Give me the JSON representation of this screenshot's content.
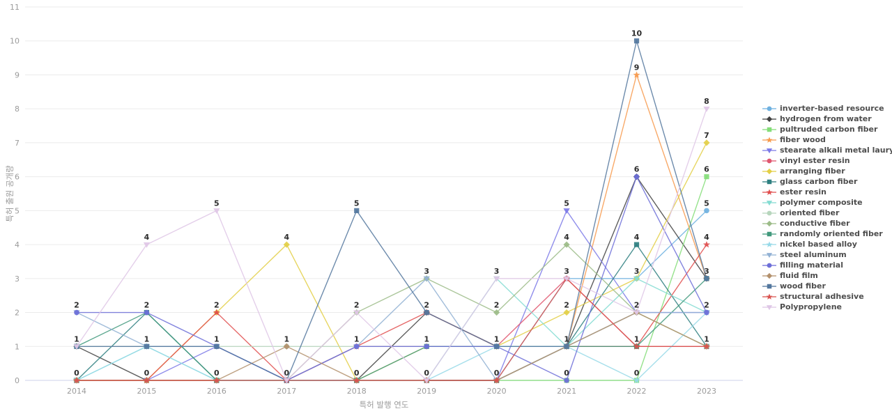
{
  "chart_data": {
    "type": "line",
    "title": "",
    "xlabel": "특허 발행 연도",
    "ylabel": "특허 출원 공개량",
    "x": [
      2014,
      2015,
      2016,
      2017,
      2018,
      2019,
      2020,
      2021,
      2022,
      2023
    ],
    "ylim": [
      0,
      11
    ],
    "yticks": [
      0,
      1,
      2,
      3,
      4,
      5,
      6,
      7,
      8,
      9,
      10,
      11
    ],
    "grid": true,
    "legend_position": "right",
    "point_labels": "one label per distinct value per year column",
    "colors": {
      "grid": "#ebebeb",
      "zero_line": "#ccd2ea",
      "tick_text": "#9b9b9b",
      "value_label_text": "#2d2d2d",
      "legend_text": "#4d4d4d",
      "background": "#ffffff"
    },
    "series": [
      {
        "name": "inverter-based resource",
        "color": "#6fb1e0",
        "marker": "circle",
        "values": [
          0,
          0,
          0,
          0,
          0,
          0,
          0,
          3,
          3,
          5
        ]
      },
      {
        "name": "hydrogen from water",
        "color": "#414141",
        "marker": "diamond",
        "values": [
          1,
          0,
          0,
          0,
          0,
          2,
          1,
          1,
          6,
          3
        ]
      },
      {
        "name": "pultruded carbon fiber",
        "color": "#84dd78",
        "marker": "square",
        "values": [
          0,
          0,
          0,
          0,
          0,
          0,
          0,
          0,
          0,
          6
        ]
      },
      {
        "name": "fiber wood",
        "color": "#f79a4d",
        "marker": "star",
        "values": [
          0,
          0,
          0,
          0,
          0,
          0,
          0,
          1,
          9,
          3
        ]
      },
      {
        "name": "stearate alkali metal laury...",
        "color": "#7d7ae8",
        "marker": "triangle-down",
        "values": [
          0,
          0,
          1,
          0,
          0,
          0,
          0,
          5,
          2,
          2
        ]
      },
      {
        "name": "vinyl ester resin",
        "color": "#e0566f",
        "marker": "circle",
        "values": [
          0,
          0,
          0,
          0,
          1,
          1,
          1,
          3,
          1,
          1
        ]
      },
      {
        "name": "arranging fiber",
        "color": "#e3cf46",
        "marker": "diamond",
        "values": [
          0,
          0,
          2,
          4,
          0,
          1,
          1,
          2,
          3,
          7
        ]
      },
      {
        "name": "glass carbon fiber",
        "color": "#2e7f80",
        "marker": "square",
        "values": [
          0,
          2,
          0,
          0,
          0,
          0,
          0,
          1,
          4,
          1
        ]
      },
      {
        "name": "ester resin",
        "color": "#e04d4d",
        "marker": "star",
        "values": [
          0,
          0,
          2,
          0,
          1,
          2,
          1,
          1,
          1,
          4
        ]
      },
      {
        "name": "polymer composite",
        "color": "#84dcd2",
        "marker": "triangle-down",
        "values": [
          0,
          1,
          0,
          0,
          0,
          0,
          3,
          1,
          3,
          2
        ]
      },
      {
        "name": "oriented fiber",
        "color": "#b7d6bd",
        "marker": "circle",
        "values": [
          1,
          1,
          1,
          1,
          1,
          1,
          1,
          1,
          2,
          1
        ]
      },
      {
        "name": "conductive fiber",
        "color": "#9cbc88",
        "marker": "diamond",
        "values": [
          0,
          0,
          0,
          0,
          2,
          3,
          2,
          4,
          2,
          1
        ]
      },
      {
        "name": "randomly oriented fiber",
        "color": "#41997c",
        "marker": "square",
        "values": [
          1,
          2,
          0,
          0,
          0,
          1,
          1,
          1,
          1,
          3
        ]
      },
      {
        "name": "nickel based alloy",
        "color": "#96d9e8",
        "marker": "star",
        "values": [
          0,
          1,
          0,
          0,
          0,
          0,
          1,
          1,
          0,
          2
        ]
      },
      {
        "name": "steel aluminum",
        "color": "#92b1d4",
        "marker": "triangle-down",
        "values": [
          2,
          1,
          1,
          0,
          1,
          3,
          0,
          1,
          2,
          2
        ]
      },
      {
        "name": "filling material",
        "color": "#6d6fd8",
        "marker": "circle",
        "values": [
          2,
          2,
          1,
          0,
          1,
          1,
          1,
          0,
          6,
          2
        ]
      },
      {
        "name": "fluid film",
        "color": "#b3906c",
        "marker": "diamond",
        "values": [
          0,
          0,
          0,
          1,
          0,
          0,
          0,
          1,
          2,
          1
        ]
      },
      {
        "name": "wood fiber",
        "color": "#53779e",
        "marker": "square",
        "values": [
          1,
          1,
          1,
          0,
          5,
          2,
          1,
          1,
          10,
          3
        ]
      },
      {
        "name": "structural adhesive",
        "color": "#d9534f",
        "marker": "star",
        "values": [
          0,
          0,
          0,
          0,
          0,
          0,
          0,
          3,
          1,
          1
        ]
      },
      {
        "name": "Polypropylene",
        "color": "#dfc7e6",
        "marker": "triangle-down",
        "values": [
          1,
          4,
          5,
          0,
          2,
          0,
          3,
          3,
          2,
          8
        ]
      }
    ]
  }
}
